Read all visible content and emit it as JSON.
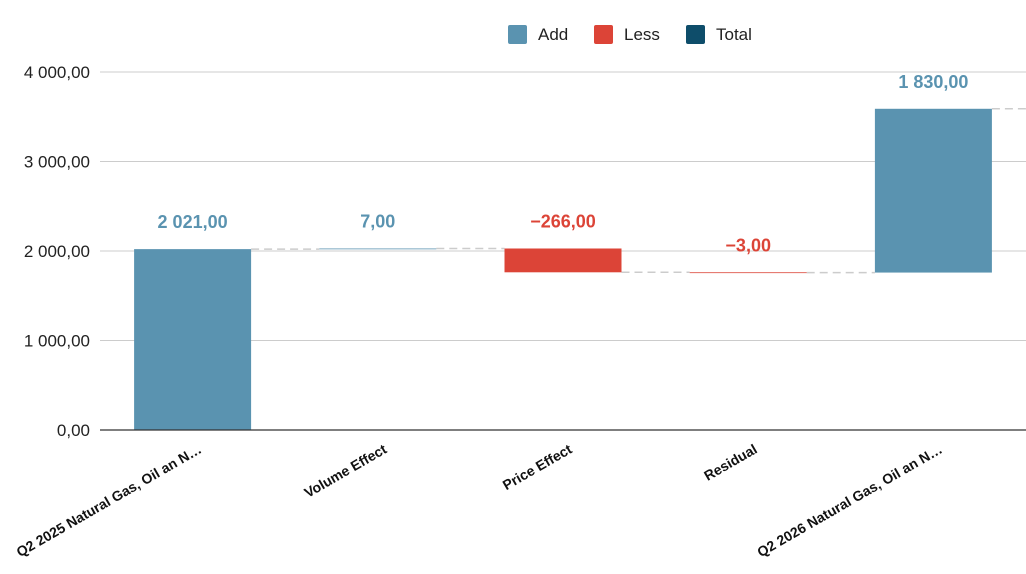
{
  "chart_data": {
    "type": "bar",
    "subtype": "waterfall",
    "title": "",
    "xlabel": "",
    "ylabel": "",
    "ylim": [
      0,
      4000
    ],
    "y_ticks": [
      0,
      1000,
      2000,
      3000,
      4000
    ],
    "y_tick_labels": [
      "0,00",
      "1 000,00",
      "2 000,00",
      "3 000,00",
      "4 000,00"
    ],
    "grid": true,
    "legend_position": "top",
    "legend": [
      {
        "name": "Add",
        "color": "#5a93b0"
      },
      {
        "name": "Less",
        "color": "#dc4437"
      },
      {
        "name": "Total",
        "color": "#0e4d6a"
      }
    ],
    "categories": [
      "Q2 2025 Natural Gas, Oil an N…",
      "Volume Effect",
      "Price Effect",
      "Residual",
      "Q2 2026 Natural Gas, Oil an N…"
    ],
    "steps": [
      {
        "kind": "add",
        "start": 0,
        "end": 2021,
        "label": "2 021,00"
      },
      {
        "kind": "add",
        "start": 2021,
        "end": 2028,
        "label": "7,00"
      },
      {
        "kind": "less",
        "start": 2028,
        "end": 1762,
        "label": "−266,00"
      },
      {
        "kind": "less",
        "start": 1762,
        "end": 1759,
        "label": "−3,00"
      },
      {
        "kind": "add",
        "start": 1759,
        "end": 3589,
        "label": "1 830,00"
      }
    ],
    "colors": {
      "add": "#5a93b0",
      "less": "#dc4437",
      "total": "#0e4d6a"
    }
  }
}
